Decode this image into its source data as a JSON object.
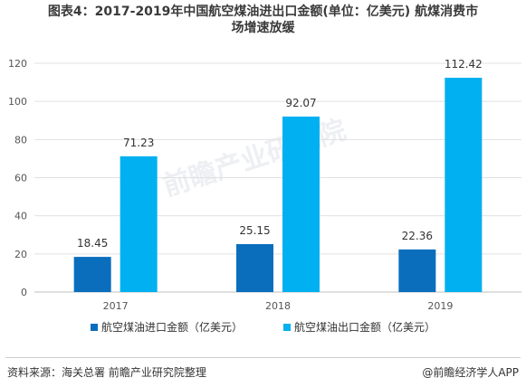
{
  "title": {
    "line1": "图表4：2017-2019年中国航空煤油进出口金额(单位：亿美元) 航煤消费市",
    "line2": "场增速放缓"
  },
  "footer": {
    "source": "资料来源：海关总署 前瞻产业研究院整理",
    "brand": "@前瞻经济学人APP"
  },
  "watermark": "前瞻产业研究院",
  "colors": {
    "import": "#0a6ebd",
    "export": "#00b0f0",
    "axis_text": "#555555",
    "gridline": "#e0e0e0"
  },
  "chart_data": {
    "type": "bar",
    "categories": [
      "2017",
      "2018",
      "2019"
    ],
    "series": [
      {
        "name": "航空煤油进口金额（亿美元）",
        "values": [
          18.45,
          25.15,
          22.36
        ]
      },
      {
        "name": "航空煤油出口金额（亿美元）",
        "values": [
          71.23,
          92.07,
          112.42
        ]
      }
    ],
    "value_labels": [
      [
        "18.45",
        "25.15",
        "22.36"
      ],
      [
        "71.23",
        "92.07",
        "112.42"
      ]
    ],
    "ylim": [
      0,
      120
    ],
    "yticks": [
      "0",
      "20",
      "40",
      "60",
      "80",
      "100",
      "120"
    ],
    "grid": true,
    "legend": "bottom"
  }
}
